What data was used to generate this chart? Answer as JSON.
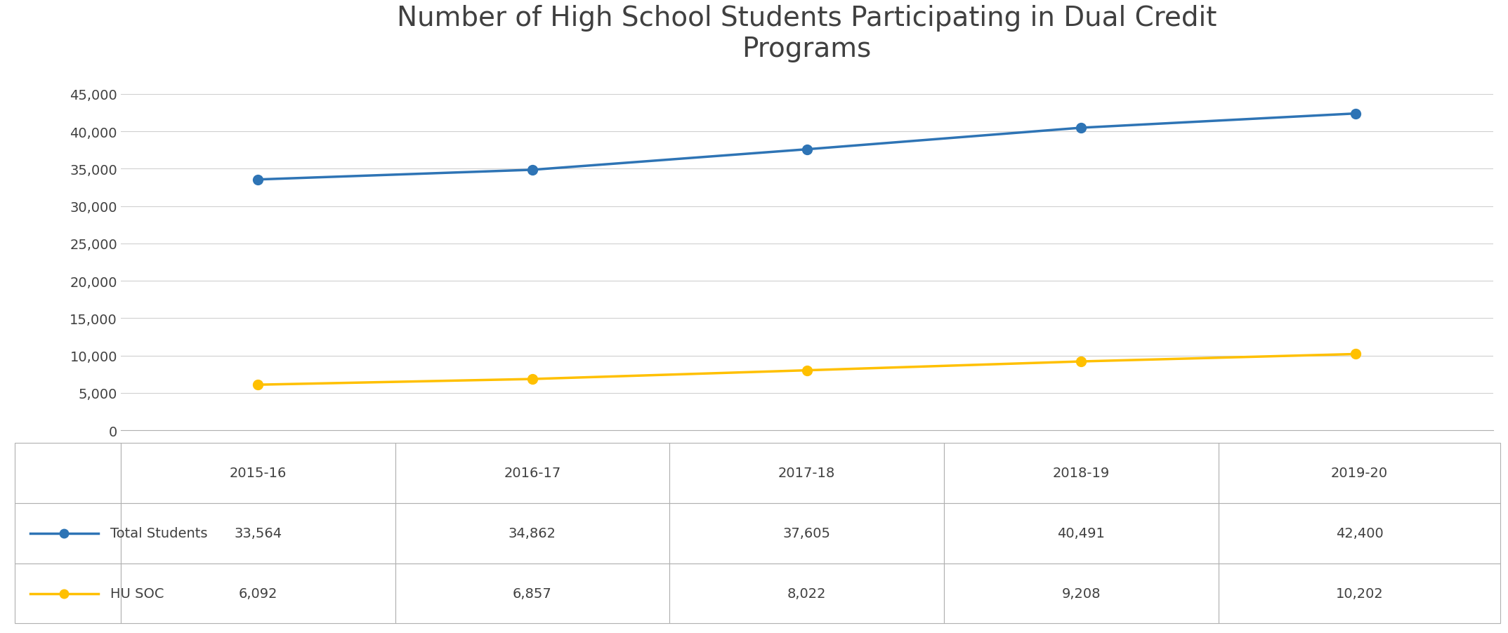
{
  "title": "Number of High School Students Participating in Dual Credit\nPrograms",
  "title_fontsize": 28,
  "title_color": "#404040",
  "categories": [
    "2015-16",
    "2016-17",
    "2017-18",
    "2018-19",
    "2019-20"
  ],
  "total_students": [
    33564,
    34862,
    37605,
    40491,
    42400
  ],
  "hu_soc": [
    6092,
    6857,
    8022,
    9208,
    10202
  ],
  "total_color": "#2E74B5",
  "hu_color": "#FFC000",
  "line_width": 2.5,
  "marker_size": 10,
  "ylim": [
    0,
    47500
  ],
  "yticks": [
    0,
    5000,
    10000,
    15000,
    20000,
    25000,
    30000,
    35000,
    40000,
    45000
  ],
  "legend_label_total": "Total Students",
  "legend_label_hu": "HU SOC",
  "table_row1_values": [
    "33,564",
    "34,862",
    "37,605",
    "40,491",
    "42,400"
  ],
  "table_row2_values": [
    "6,092",
    "6,857",
    "8,022",
    "9,208",
    "10,202"
  ],
  "background_color": "#FFFFFF",
  "grid_color": "#D0D0D0",
  "axis_label_color": "#404040",
  "tick_label_fontsize": 14,
  "table_fontsize": 14,
  "cat_label_fontsize": 14
}
